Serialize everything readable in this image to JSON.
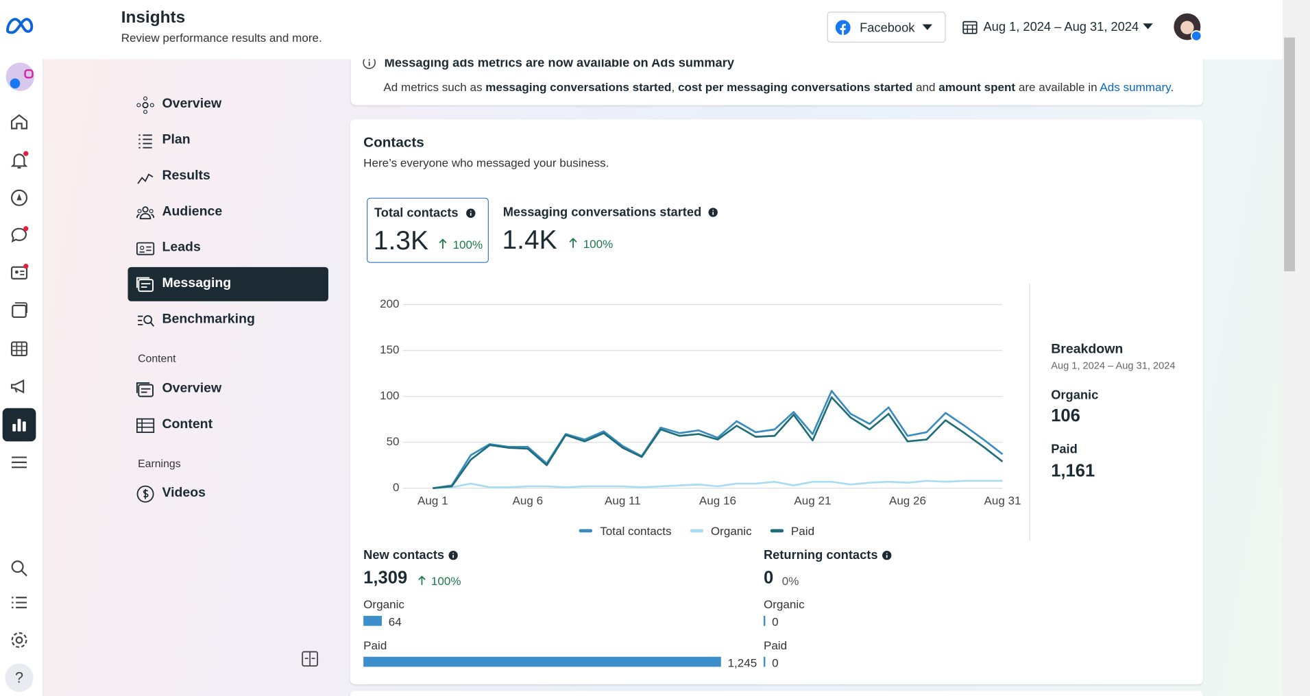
{
  "header": {
    "title": "Insights",
    "subtitle": "Review performance results and more.",
    "platform": "Facebook",
    "date_range": "Aug 1, 2024 – Aug 31, 2024"
  },
  "nav": {
    "items": [
      "Overview",
      "Plan",
      "Results",
      "Audience",
      "Leads",
      "Messaging",
      "Benchmarking"
    ],
    "active": 5
  },
  "content_section": {
    "heading": "Content",
    "items": [
      "Overview",
      "Content"
    ]
  },
  "earnings_section": {
    "heading": "Earnings",
    "items": [
      "Videos"
    ]
  },
  "notice": {
    "title": "Messaging ads metrics are now available on Ads summary",
    "parts": [
      "Ad metrics such as ",
      "messaging conversations started",
      ", ",
      "cost per messaging conversations started",
      " and ",
      "amount spent",
      " are available in ",
      "Ads summary",
      "."
    ]
  },
  "contacts": {
    "title": "Contacts",
    "subtitle": "Here’s everyone who messaged your business.",
    "metrics": [
      {
        "label": "Total contacts",
        "value": "1.3K",
        "change": "100%"
      },
      {
        "label": "Messaging conversations started",
        "value": "1.4K",
        "change": "100%"
      }
    ],
    "breakdown": {
      "title": "Breakdown",
      "date_range": "Aug 1, 2024 – Aug 31, 2024",
      "items": [
        {
          "label": "Organic",
          "value": "106"
        },
        {
          "label": "Paid",
          "value": "1,161"
        }
      ]
    },
    "new_contacts": {
      "title": "New contacts",
      "total": "1,309",
      "change": "100%",
      "categories": [
        "Organic",
        "Paid"
      ],
      "values": [
        64,
        1245
      ],
      "value_labels": [
        "64",
        "1,245"
      ],
      "color": "#3d8fcb"
    },
    "returning_contacts": {
      "title": "Returning contacts",
      "total": "0",
      "change": "0%",
      "categories": [
        "Organic",
        "Paid"
      ],
      "values": [
        0,
        0
      ],
      "value_labels": [
        "0",
        "0"
      ],
      "color": "#3d8fcb"
    }
  },
  "chart_data": {
    "type": "line",
    "categories": [
      "Aug 1",
      null,
      null,
      null,
      null,
      "Aug 6",
      null,
      null,
      null,
      null,
      "Aug 11",
      null,
      null,
      null,
      null,
      "Aug 16",
      null,
      null,
      null,
      null,
      "Aug 21",
      null,
      null,
      null,
      null,
      "Aug 26",
      null,
      null,
      null,
      null,
      "Aug 31"
    ],
    "series": [
      {
        "name": "Total contacts",
        "color": "#3a8cc0",
        "values": [
          0,
          3,
          36,
          48,
          45,
          45,
          27,
          59,
          53,
          62,
          46,
          35,
          66,
          60,
          63,
          55,
          73,
          61,
          64,
          83,
          59,
          106,
          81,
          70,
          88,
          57,
          61,
          82,
          68,
          53,
          37
        ]
      },
      {
        "name": "Organic",
        "color": "#a8dcf3",
        "values": [
          0,
          1,
          5,
          1,
          1,
          2,
          2,
          1,
          2,
          2,
          2,
          1,
          2,
          3,
          4,
          2,
          5,
          5,
          7,
          3,
          7,
          7,
          4,
          6,
          7,
          6,
          8,
          7,
          8,
          8,
          8
        ]
      },
      {
        "name": "Paid",
        "color": "#1d6e78",
        "values": [
          0,
          2,
          31,
          47,
          44,
          43,
          25,
          58,
          51,
          60,
          44,
          34,
          64,
          57,
          59,
          53,
          68,
          56,
          57,
          80,
          52,
          99,
          77,
          64,
          81,
          51,
          53,
          74,
          60,
          45,
          29
        ]
      }
    ],
    "ylim": [
      0,
      200
    ],
    "yticks": [
      0,
      50,
      100,
      150,
      200
    ],
    "grid": true
  }
}
